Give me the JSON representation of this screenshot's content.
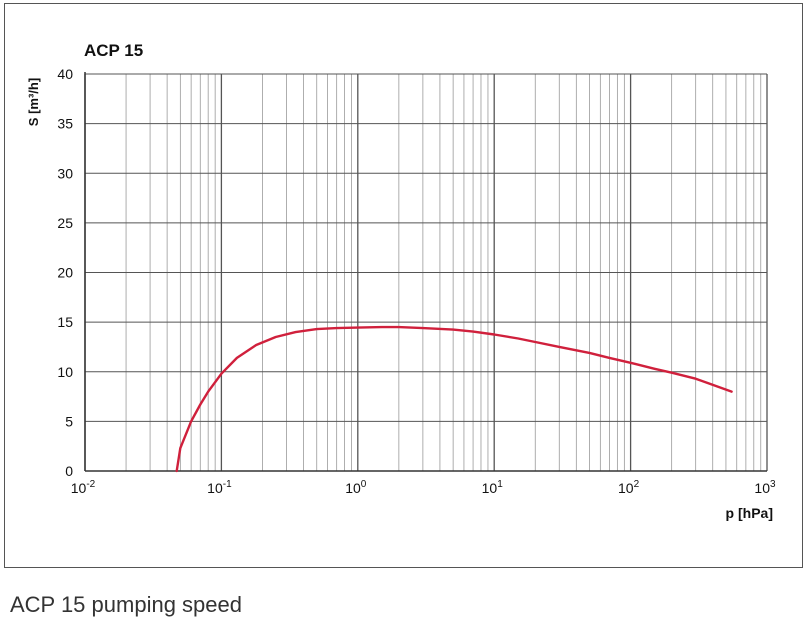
{
  "chart_data": {
    "type": "line",
    "title": "ACP 15",
    "ylabel": "S [m³/h]",
    "xlabel": "p [hPa]",
    "xscale": "log",
    "xlim": [
      0.01,
      1000
    ],
    "ylim": [
      0,
      40
    ],
    "x_ticks": [
      {
        "value": 0.01,
        "base": "10",
        "exp": "-2"
      },
      {
        "value": 0.1,
        "base": "10",
        "exp": "-1"
      },
      {
        "value": 1,
        "base": "10",
        "exp": "0"
      },
      {
        "value": 10,
        "base": "10",
        "exp": "1"
      },
      {
        "value": 100,
        "base": "10",
        "exp": "2"
      },
      {
        "value": 1000,
        "base": "10",
        "exp": "3"
      }
    ],
    "y_ticks": [
      "0",
      "5",
      "10",
      "15",
      "20",
      "25",
      "30",
      "35",
      "40"
    ],
    "grid": true,
    "series": [
      {
        "color": "#d0203c",
        "x": [
          0.047,
          0.05,
          0.06,
          0.07,
          0.08,
          0.1,
          0.13,
          0.18,
          0.25,
          0.35,
          0.5,
          0.7,
          1,
          1.5,
          2,
          3,
          5,
          7,
          10,
          15,
          20,
          30,
          50,
          70,
          100,
          150,
          200,
          300,
          550
        ],
        "y": [
          0,
          2.3,
          5.0,
          6.7,
          8.0,
          9.8,
          11.4,
          12.7,
          13.5,
          14.0,
          14.3,
          14.4,
          14.45,
          14.5,
          14.5,
          14.4,
          14.25,
          14.05,
          13.75,
          13.35,
          13.0,
          12.5,
          11.9,
          11.4,
          10.9,
          10.3,
          9.9,
          9.3,
          8.0
        ]
      }
    ]
  },
  "caption": "ACP 15 pumping speed"
}
